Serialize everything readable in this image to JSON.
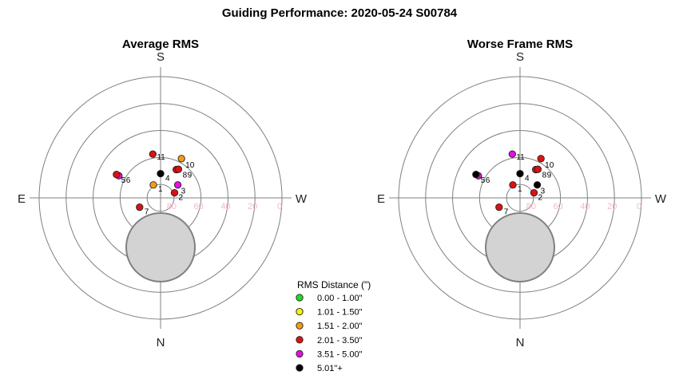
{
  "title": "Guiding Performance: 2020-05-24 S00784",
  "colors": {
    "ring": "#808080",
    "axis": "#808080",
    "tick_label": "#f4b8c8",
    "obstruction_fill": "#d3d3d3",
    "obstruction_stroke": "#808080"
  },
  "chart_data": [
    {
      "type": "scatter",
      "projection": "polar-altaz",
      "title": "Average RMS",
      "cardinals": {
        "top": "S",
        "bottom": "N",
        "left": "E",
        "right": "W"
      },
      "radial_ticks": [
        "80",
        "60",
        "40",
        "20",
        "0"
      ],
      "points": [
        {
          "label": "1",
          "az": 151,
          "alt": 79,
          "color": "#f39c12"
        },
        {
          "label": "2",
          "az": 250,
          "alt": 79,
          "color": "#dd1111"
        },
        {
          "label": "3",
          "az": 233,
          "alt": 74,
          "color": "#e310e3"
        },
        {
          "label": "4",
          "az": 180,
          "alt": 72,
          "color": "#000000"
        },
        {
          "label": "5",
          "az": 118,
          "alt": 55,
          "color": "#e310e3"
        },
        {
          "label": "6",
          "az": 118,
          "alt": 53,
          "color": "#dd1111"
        },
        {
          "label": "7",
          "az": 66,
          "alt": 73,
          "color": "#dd1111"
        },
        {
          "label": "8",
          "az": 209,
          "alt": 66,
          "color": "#dd1111"
        },
        {
          "label": "9",
          "az": 212,
          "alt": 65,
          "color": "#dd1111"
        },
        {
          "label": "10",
          "az": 208,
          "alt": 57,
          "color": "#f39c12"
        },
        {
          "label": "11",
          "az": 170,
          "alt": 57,
          "color": "#dd1111"
        }
      ]
    },
    {
      "type": "scatter",
      "projection": "polar-altaz",
      "title": "Worse Frame RMS",
      "cardinals": {
        "top": "S",
        "bottom": "N",
        "left": "E",
        "right": "W"
      },
      "radial_ticks": [
        "80",
        "60",
        "40",
        "20",
        "0"
      ],
      "points": [
        {
          "label": "1",
          "az": 151,
          "alt": 79,
          "color": "#dd1111"
        },
        {
          "label": "2",
          "az": 250,
          "alt": 79,
          "color": "#dd1111"
        },
        {
          "label": "3",
          "az": 233,
          "alt": 74,
          "color": "#000000"
        },
        {
          "label": "4",
          "az": 180,
          "alt": 72,
          "color": "#000000"
        },
        {
          "label": "5",
          "az": 118,
          "alt": 55,
          "color": "#e310e3"
        },
        {
          "label": "6",
          "az": 118,
          "alt": 53,
          "color": "#000000"
        },
        {
          "label": "7",
          "az": 66,
          "alt": 73,
          "color": "#dd1111"
        },
        {
          "label": "8",
          "az": 209,
          "alt": 66,
          "color": "#dd1111"
        },
        {
          "label": "9",
          "az": 212,
          "alt": 65,
          "color": "#dd1111"
        },
        {
          "label": "10",
          "az": 208,
          "alt": 57,
          "color": "#dd1111"
        },
        {
          "label": "11",
          "az": 170,
          "alt": 57,
          "color": "#e310e3"
        }
      ]
    }
  ],
  "legend": {
    "title": "RMS Distance (\")",
    "items": [
      {
        "label": "0.00 - 1.00\"",
        "color": "#22dd22"
      },
      {
        "label": "1.01 - 1.50\"",
        "color": "#f5f500"
      },
      {
        "label": "1.51 - 2.00\"",
        "color": "#f39c12"
      },
      {
        "label": "2.01 - 3.50\"",
        "color": "#dd1111"
      },
      {
        "label": "3.51 - 5.00\"",
        "color": "#e310e3"
      },
      {
        "label": "5.01\"+",
        "color": "#000000"
      }
    ]
  }
}
